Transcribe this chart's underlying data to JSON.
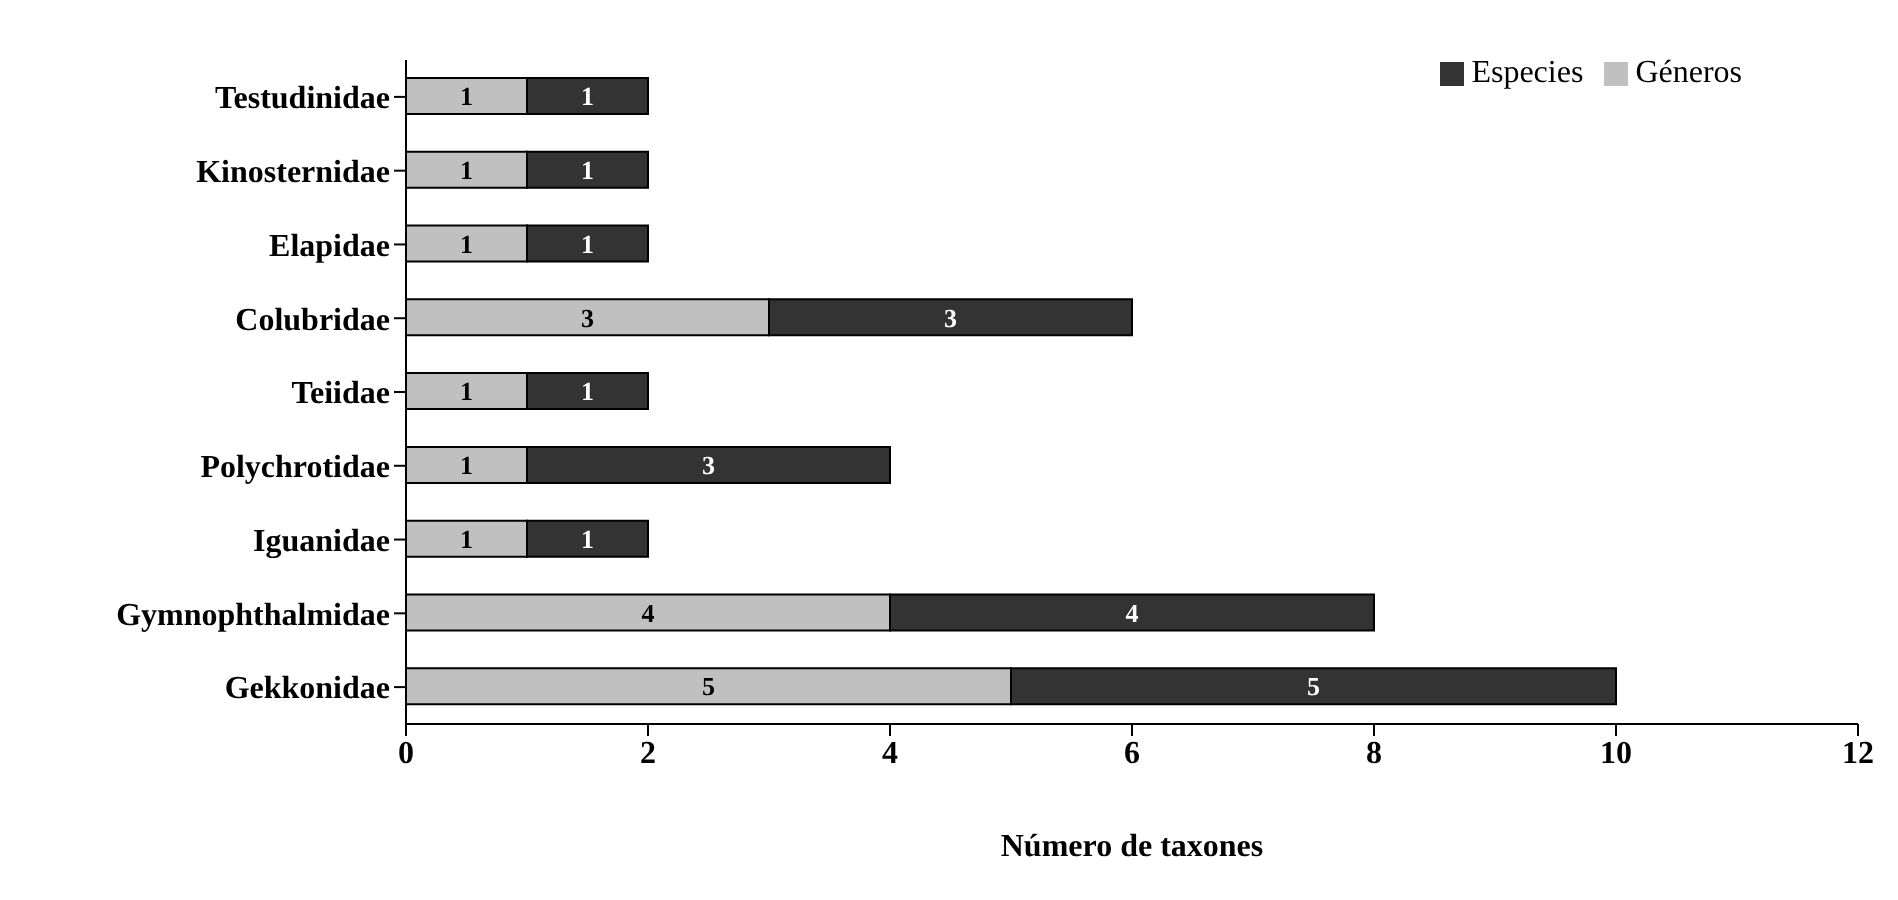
{
  "chart_data": {
    "type": "bar",
    "orientation": "horizontal",
    "stacked": true,
    "xlabel": "Número de taxones",
    "categories": [
      "Testudinidae",
      "Kinosternidae",
      "Elapidae",
      "Colubridae",
      "Teiidae",
      "Polychrotidae",
      "Iguanidae",
      "Gymnophthalmidae",
      "Gekkonidae"
    ],
    "series": [
      {
        "name": "Géneros",
        "color": "#c0c0c0",
        "values": [
          1,
          1,
          1,
          3,
          1,
          1,
          1,
          4,
          5
        ]
      },
      {
        "name": "Especies",
        "color": "#333333",
        "values": [
          1,
          1,
          1,
          3,
          1,
          3,
          1,
          4,
          5
        ]
      }
    ],
    "xlim": [
      0,
      12
    ],
    "xticks": [
      0,
      2,
      4,
      6,
      8,
      10,
      12
    ],
    "grid": false,
    "legend": "top right",
    "data_labels": true
  }
}
